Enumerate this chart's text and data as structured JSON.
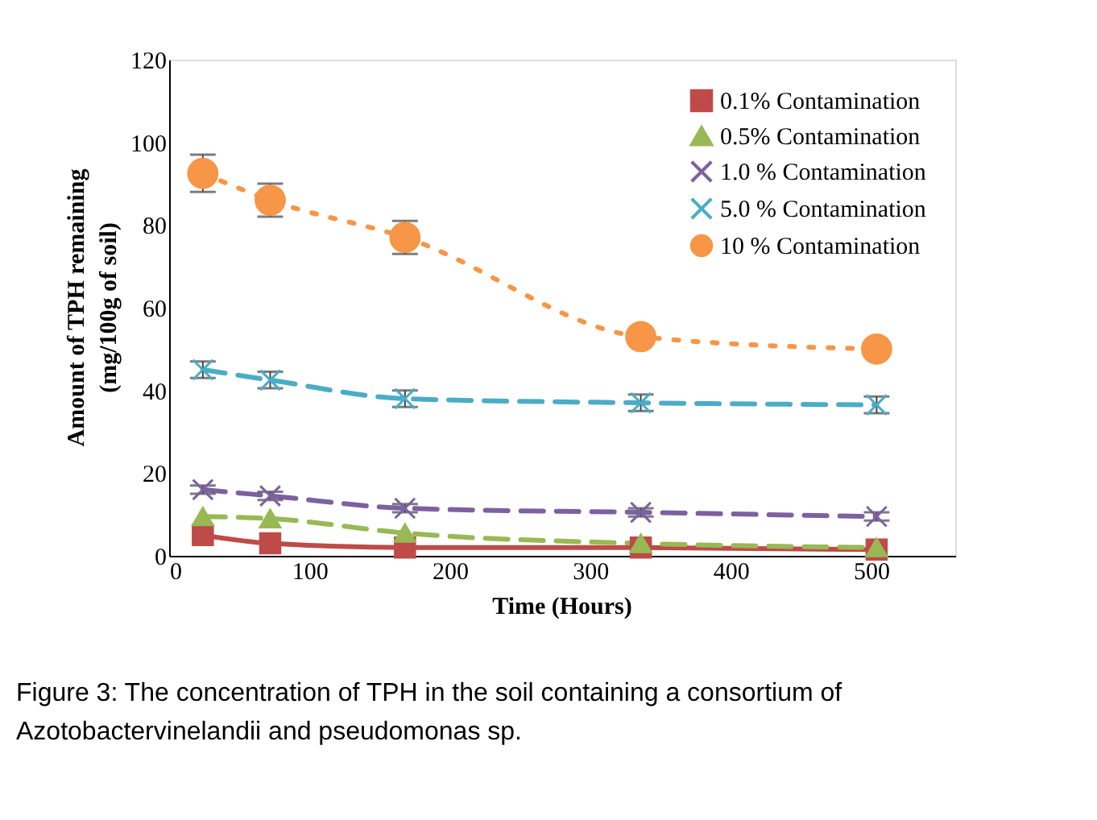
{
  "chart_data": {
    "type": "line",
    "xlabel": "Time (Hours)",
    "ylabel": "Amount of TPH remaining (mg/100g of soil)",
    "x": [
      24,
      72,
      168,
      336,
      504
    ],
    "xlim": [
      0,
      560
    ],
    "xticks": [
      0,
      100,
      200,
      300,
      400,
      500
    ],
    "ylim": [
      0,
      120
    ],
    "yticks": [
      0,
      20,
      40,
      60,
      80,
      100,
      120
    ],
    "grid": false,
    "legend": "top right",
    "series": [
      {
        "name": "0.1% Contamination",
        "color": "#be4b48",
        "marker": "square",
        "line_style": "solid",
        "values": [
          5,
          3,
          2,
          2,
          1.5
        ]
      },
      {
        "name": "0.5% Contamination",
        "color": "#98b954",
        "marker": "triangle",
        "line_style": "dashed",
        "values": [
          9.5,
          9,
          5.5,
          3,
          2
        ]
      },
      {
        "name": "1.0 % Contamination",
        "color": "#7d60a0",
        "marker": "cross",
        "line_style": "dashed",
        "values": [
          16,
          14.5,
          11.5,
          10.5,
          9.5
        ],
        "errors": [
          1,
          1,
          1,
          1,
          1
        ]
      },
      {
        "name": "5.0 % Contamination",
        "color": "#4bacc6",
        "marker": "cross",
        "line_style": "dashed",
        "values": [
          45,
          42.5,
          38,
          37,
          36.5
        ],
        "errors": [
          2,
          2,
          2,
          2,
          2
        ]
      },
      {
        "name": "10 % Contamination",
        "color": "#f79646",
        "marker": "circle",
        "line_style": "dotted",
        "values": [
          92.5,
          86,
          77,
          53,
          50
        ],
        "errors": [
          4.5,
          4,
          4,
          null,
          null
        ]
      }
    ],
    "annotations": [
      "Figure 3: The concentration of TPH in the soil containing a consortium of Azotobactervinelandii and pseudomonas sp."
    ]
  }
}
